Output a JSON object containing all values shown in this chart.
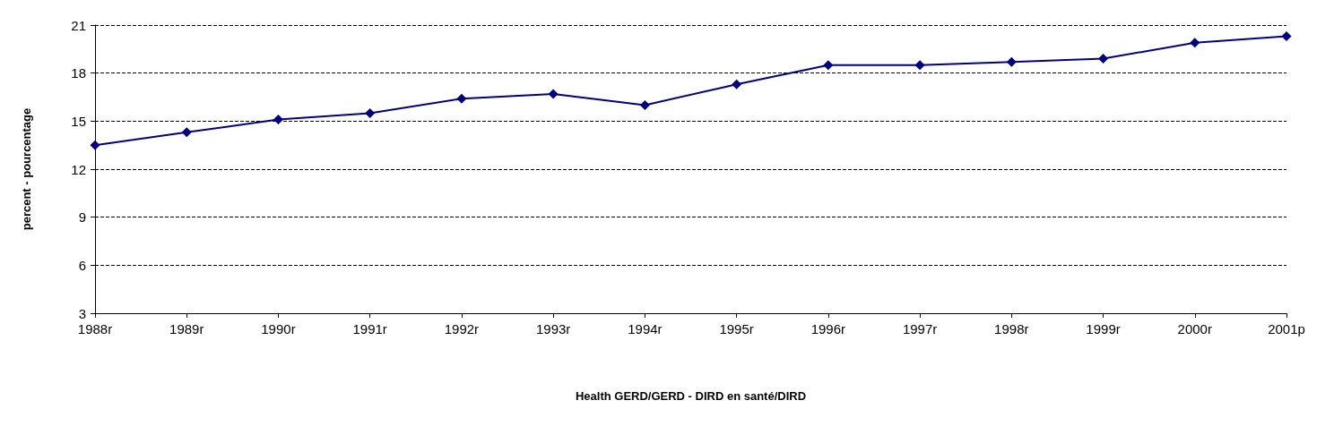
{
  "chart_data": {
    "type": "line",
    "xlabel": "Health GERD/GERD - DIRD en santé/DIRD",
    "ylabel": "percent - pourcentage",
    "categories": [
      "1988r",
      "1989r",
      "1990r",
      "1991r",
      "1992r",
      "1993r",
      "1994r",
      "1995r",
      "1996r",
      "1997r",
      "1998r",
      "1999r",
      "2000r",
      "2001p"
    ],
    "series": [
      {
        "color": "#000080",
        "values": [
          13.5,
          14.3,
          15.1,
          15.5,
          16.4,
          16.7,
          16.0,
          17.3,
          18.5,
          18.5,
          18.7,
          18.9,
          19.9,
          20.3
        ]
      }
    ],
    "ylim": [
      3,
      21
    ],
    "yticks": [
      3,
      6,
      9,
      12,
      15,
      18,
      21
    ],
    "grid": "y",
    "marker": "diamond",
    "line_style": "solid"
  }
}
